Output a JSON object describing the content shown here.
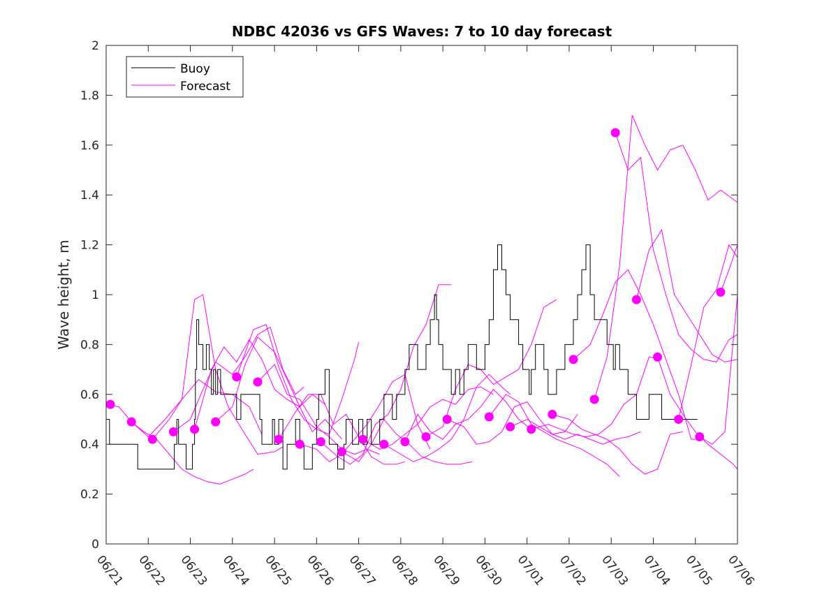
{
  "chart_data": {
    "type": "line",
    "title": "NDBC 42036 vs GFS Waves: 7 to 10 day forecast",
    "xlabel": "",
    "ylabel": "Wave height, m",
    "xlim": [
      "06/21",
      "07/06"
    ],
    "ylim": [
      0,
      2
    ],
    "x_ticks": [
      "06/21",
      "06/22",
      "06/23",
      "06/24",
      "06/25",
      "06/26",
      "06/27",
      "06/28",
      "06/29",
      "06/30",
      "07/01",
      "07/02",
      "07/03",
      "07/04",
      "07/05",
      "07/06"
    ],
    "y_ticks": [
      "0",
      "0.2",
      "0.4",
      "0.6",
      "0.8",
      "1",
      "1.2",
      "1.4",
      "1.6",
      "1.8",
      "2"
    ],
    "grid": false,
    "legend": {
      "position": "top-left",
      "entries": [
        "Buoy",
        "Forecast"
      ]
    },
    "colors": {
      "buoy": "#000000",
      "forecast": "#ff00ff"
    },
    "series": [
      {
        "name": "Buoy",
        "style": "step",
        "x": [
          0,
          0.08,
          0.12,
          0.7,
          0.75,
          1.55,
          1.6,
          1.62,
          1.68,
          1.72,
          1.8,
          1.9,
          2.0,
          2.05,
          2.1,
          2.12,
          2.15,
          2.2,
          2.25,
          2.3,
          2.38,
          2.45,
          2.5,
          2.55,
          2.6,
          2.65,
          2.72,
          2.8,
          2.85,
          2.9,
          3.0,
          3.1,
          3.2,
          3.3,
          3.4,
          3.5,
          3.6,
          3.65,
          3.7,
          3.8,
          3.9,
          3.95,
          4.0,
          4.05,
          4.1,
          4.2,
          4.3,
          4.4,
          4.5,
          4.6,
          4.7,
          4.8,
          4.9,
          5.0,
          5.05,
          5.1,
          5.2,
          5.3,
          5.4,
          5.5,
          5.6,
          5.65,
          5.7,
          5.75,
          5.8,
          5.85,
          5.9,
          6.0,
          6.1,
          6.2,
          6.3,
          6.4,
          6.5,
          6.6,
          6.7,
          6.8,
          6.9,
          7.0,
          7.1,
          7.2,
          7.3,
          7.4,
          7.5,
          7.6,
          7.7,
          7.8,
          7.85,
          7.9,
          8.0,
          8.1,
          8.2,
          8.3,
          8.4,
          8.5,
          8.6,
          8.7,
          8.8,
          8.9,
          9.0,
          9.1,
          9.2,
          9.3,
          9.4,
          9.5,
          9.6,
          9.7,
          9.8,
          9.9,
          10.0,
          10.05,
          10.1,
          10.2,
          10.3,
          10.4,
          10.5,
          10.6,
          10.7,
          10.8,
          10.9,
          11.0,
          11.1,
          11.2,
          11.3,
          11.4,
          11.5,
          11.6,
          11.7,
          11.8,
          11.9,
          12.0,
          12.05,
          12.1,
          12.2,
          12.3,
          12.4,
          12.5,
          12.6,
          12.7,
          12.8,
          12.9,
          13.0,
          13.1,
          13.2,
          13.3,
          13.4,
          13.5,
          13.6,
          13.7,
          13.8,
          13.9,
          14.0,
          14.05
        ],
        "y": [
          0.5,
          0.4,
          0.4,
          0.4,
          0.3,
          0.3,
          0.3,
          0.4,
          0.5,
          0.4,
          0.4,
          0.3,
          0.3,
          0.4,
          0.5,
          0.7,
          0.9,
          0.8,
          0.8,
          0.7,
          0.8,
          0.7,
          0.6,
          0.7,
          0.6,
          0.7,
          0.6,
          0.6,
          0.6,
          0.6,
          0.6,
          0.5,
          0.6,
          0.6,
          0.6,
          0.6,
          0.6,
          0.5,
          0.4,
          0.4,
          0.4,
          0.5,
          0.4,
          0.4,
          0.5,
          0.3,
          0.4,
          0.4,
          0.5,
          0.4,
          0.3,
          0.3,
          0.4,
          0.5,
          0.6,
          0.6,
          0.7,
          0.4,
          0.4,
          0.3,
          0.3,
          0.4,
          0.5,
          0.5,
          0.5,
          0.4,
          0.4,
          0.5,
          0.4,
          0.5,
          0.4,
          0.4,
          0.5,
          0.6,
          0.6,
          0.5,
          0.6,
          0.6,
          0.7,
          0.8,
          0.8,
          0.7,
          0.7,
          0.8,
          0.9,
          1.0,
          0.9,
          0.8,
          0.7,
          0.7,
          0.6,
          0.7,
          0.6,
          0.7,
          0.8,
          0.8,
          0.7,
          0.7,
          0.8,
          0.9,
          1.1,
          1.2,
          1.1,
          1.0,
          0.9,
          0.9,
          0.8,
          0.7,
          0.7,
          0.6,
          0.7,
          0.8,
          0.8,
          0.7,
          0.6,
          0.6,
          0.7,
          0.7,
          0.8,
          0.8,
          0.9,
          1.0,
          1.1,
          1.2,
          1.0,
          0.9,
          0.9,
          0.9,
          0.8,
          0.8,
          0.7,
          0.8,
          0.7,
          0.7,
          0.6,
          0.6,
          0.5,
          0.5,
          0.5,
          0.6,
          0.6,
          0.6,
          0.5,
          0.5,
          0.5,
          0.5,
          0.5,
          0.5,
          0.5,
          0.5,
          0.5,
          0.5
        ],
        "x_note": "days since 06/21"
      }
    ],
    "forecast_runs": [
      {
        "x": [
          0,
          0.3,
          0.6,
          0.9,
          1.2,
          1.5,
          1.8,
          2.1,
          2.4,
          2.7,
          3.0,
          3.3,
          3.5
        ],
        "y": [
          0.56,
          0.55,
          0.49,
          0.45,
          0.42,
          0.36,
          0.3,
          0.27,
          0.25,
          0.24,
          0.26,
          0.28,
          0.3
        ]
      },
      {
        "x": [
          0.6,
          1.0,
          1.4,
          1.8,
          2.2,
          2.6,
          3.0,
          3.4,
          3.7
        ],
        "y": [
          0.49,
          0.43,
          0.5,
          0.58,
          0.66,
          0.61,
          0.6,
          0.55,
          0.44
        ]
      },
      {
        "x": [
          1.1,
          1.5,
          1.8,
          2.1,
          2.3,
          2.6,
          2.9,
          3.3,
          3.6,
          4.0,
          4.2
        ],
        "y": [
          0.42,
          0.5,
          0.58,
          0.98,
          1.0,
          0.7,
          0.55,
          0.44,
          0.36,
          0.37,
          0.39
        ]
      },
      {
        "x": [
          1.6,
          2.0,
          2.3,
          2.6,
          3.0,
          3.3,
          3.6,
          3.9,
          4.2,
          4.5,
          4.7
        ],
        "y": [
          0.45,
          0.5,
          0.62,
          0.73,
          0.68,
          0.75,
          0.84,
          0.87,
          0.7,
          0.6,
          0.63
        ]
      },
      {
        "x": [
          2.1,
          2.5,
          2.8,
          3.1,
          3.4,
          3.7,
          4.0,
          4.3,
          4.6,
          4.9,
          5.2
        ],
        "y": [
          0.46,
          0.7,
          0.79,
          0.73,
          0.82,
          0.74,
          0.62,
          0.58,
          0.55,
          0.6,
          0.56
        ]
      },
      {
        "x": [
          2.6,
          3.0,
          3.3,
          3.6,
          4.0,
          4.3,
          4.6,
          4.9,
          5.2,
          5.6
        ],
        "y": [
          0.49,
          0.55,
          0.72,
          0.83,
          0.77,
          0.66,
          0.55,
          0.45,
          0.5,
          0.42
        ]
      },
      {
        "x": [
          3.1,
          3.5,
          3.8,
          4.1,
          4.4,
          4.7,
          5.0,
          5.3,
          5.6,
          5.9,
          6.0
        ],
        "y": [
          0.67,
          0.86,
          0.88,
          0.71,
          0.58,
          0.5,
          0.46,
          0.44,
          0.58,
          0.74,
          0.81
        ]
      },
      {
        "x": [
          3.6,
          4.0,
          4.3,
          4.6,
          5.0,
          5.3,
          5.6,
          5.9,
          6.2,
          6.5
        ],
        "y": [
          0.65,
          0.72,
          0.6,
          0.58,
          0.47,
          0.43,
          0.38,
          0.36,
          0.38,
          0.36
        ]
      },
      {
        "x": [
          4.1,
          4.5,
          4.8,
          5.1,
          5.4,
          5.7,
          6.0,
          6.3,
          6.6,
          6.9,
          7.1
        ],
        "y": [
          0.42,
          0.53,
          0.6,
          0.6,
          0.48,
          0.52,
          0.43,
          0.35,
          0.32,
          0.32,
          0.33
        ]
      },
      {
        "x": [
          4.6,
          5.0,
          5.3,
          5.6,
          5.9,
          6.2,
          6.5,
          6.8,
          7.1,
          7.4,
          7.7
        ],
        "y": [
          0.4,
          0.38,
          0.33,
          0.36,
          0.42,
          0.48,
          0.56,
          0.65,
          0.68,
          0.48,
          0.38
        ]
      },
      {
        "x": [
          5.1,
          5.5,
          5.8,
          6.1,
          6.4,
          6.7,
          7.0,
          7.3,
          7.6,
          7.9,
          8.2
        ],
        "y": [
          0.41,
          0.35,
          0.32,
          0.36,
          0.48,
          0.52,
          0.62,
          0.79,
          0.88,
          1.04,
          1.04
        ]
      },
      {
        "x": [
          5.6,
          6.0,
          6.3,
          6.6,
          6.9,
          7.2,
          7.5,
          7.8,
          8.1,
          8.4,
          8.7
        ],
        "y": [
          0.37,
          0.33,
          0.4,
          0.5,
          0.44,
          0.4,
          0.35,
          0.33,
          0.32,
          0.32,
          0.33
        ]
      },
      {
        "x": [
          6.1,
          6.5,
          6.8,
          7.1,
          7.4,
          7.7,
          8.0,
          8.3,
          8.6,
          8.9,
          9.2
        ],
        "y": [
          0.42,
          0.38,
          0.4,
          0.44,
          0.48,
          0.55,
          0.58,
          0.56,
          0.62,
          0.63,
          0.6
        ]
      },
      {
        "x": [
          6.6,
          7.0,
          7.3,
          7.6,
          7.9,
          8.2,
          8.5,
          8.8,
          9.1,
          9.4,
          9.6
        ],
        "y": [
          0.4,
          0.36,
          0.33,
          0.35,
          0.38,
          0.42,
          0.5,
          0.63,
          0.68,
          0.63,
          0.6
        ]
      },
      {
        "x": [
          7.1,
          7.4,
          7.7,
          8.0,
          8.3,
          8.6,
          8.9,
          9.2,
          9.5,
          9.8,
          10.1
        ],
        "y": [
          0.41,
          0.52,
          0.45,
          0.42,
          0.48,
          0.5,
          0.55,
          0.62,
          0.57,
          0.5,
          0.46
        ]
      },
      {
        "x": [
          7.6,
          8.0,
          8.3,
          8.6,
          8.9,
          9.2,
          9.5,
          9.8,
          10.1,
          10.4,
          10.7
        ],
        "y": [
          0.43,
          0.47,
          0.62,
          0.72,
          0.7,
          0.64,
          0.67,
          0.7,
          0.8,
          0.95,
          0.98
        ]
      },
      {
        "x": [
          8.1,
          8.5,
          8.8,
          9.1,
          9.4,
          9.7,
          10.0,
          10.3,
          10.6,
          10.9,
          11.2
        ],
        "y": [
          0.5,
          0.47,
          0.4,
          0.41,
          0.45,
          0.55,
          0.57,
          0.5,
          0.44,
          0.45,
          0.52
        ]
      },
      {
        "x": [
          9.1,
          9.5,
          9.8,
          10.1,
          10.4,
          10.7,
          11.0,
          11.3,
          11.6,
          11.9,
          12.2
        ],
        "y": [
          0.51,
          0.6,
          0.57,
          0.48,
          0.45,
          0.42,
          0.4,
          0.38,
          0.35,
          0.32,
          0.27
        ]
      },
      {
        "x": [
          9.6,
          10.0,
          10.3,
          10.6,
          10.9,
          11.2,
          11.5,
          11.8,
          12.1,
          12.4,
          12.7
        ],
        "y": [
          0.47,
          0.5,
          0.47,
          0.44,
          0.42,
          0.44,
          0.42,
          0.4,
          0.42,
          0.43,
          0.45
        ]
      },
      {
        "x": [
          10.1,
          10.5,
          10.8,
          11.1,
          11.4,
          11.7,
          12.0,
          12.3,
          12.6,
          12.9,
          13.2
        ],
        "y": [
          0.46,
          0.48,
          0.46,
          0.44,
          0.43,
          0.44,
          0.48,
          0.56,
          0.6,
          0.75,
          0.74
        ]
      },
      {
        "x": [
          10.6,
          11.0,
          11.3,
          11.6,
          11.9,
          12.2,
          12.5,
          12.8,
          13.1,
          13.4,
          13.7
        ],
        "y": [
          0.52,
          0.5,
          0.46,
          0.44,
          0.42,
          0.38,
          0.32,
          0.28,
          0.3,
          0.44,
          0.45
        ]
      },
      {
        "x": [
          11.1,
          11.5,
          11.8,
          12.1,
          12.4,
          12.7,
          13.0,
          13.3,
          13.6,
          13.9,
          14.1
        ],
        "y": [
          0.74,
          0.8,
          0.92,
          1.05,
          1.1,
          1.0,
          0.88,
          0.74,
          0.6,
          0.42,
          0.42
        ]
      },
      {
        "x": [
          11.6,
          11.9,
          12.2,
          12.5,
          12.8,
          13.1,
          13.4,
          13.7,
          14.0,
          14.3,
          14.6,
          15.0
        ],
        "y": [
          0.58,
          0.75,
          1.12,
          1.72,
          1.6,
          1.5,
          1.58,
          1.6,
          1.5,
          1.38,
          1.42,
          1.37
        ]
      },
      {
        "x": [
          12.1,
          12.4,
          12.7,
          13.0,
          13.3,
          13.6,
          13.9,
          14.2,
          14.5,
          14.8,
          15.0
        ],
        "y": [
          1.65,
          1.5,
          1.55,
          1.18,
          1.0,
          0.84,
          0.78,
          0.74,
          0.73,
          0.82,
          0.84
        ]
      },
      {
        "x": [
          12.6,
          12.9,
          13.2,
          13.5,
          13.8,
          14.1,
          14.4,
          14.7,
          15.0
        ],
        "y": [
          0.98,
          1.18,
          1.26,
          1.0,
          0.92,
          0.84,
          0.76,
          0.73,
          0.74
        ]
      },
      {
        "x": [
          13.1,
          13.4,
          13.7,
          14.0,
          14.3,
          14.6,
          14.9,
          15.0
        ],
        "y": [
          0.75,
          0.6,
          0.52,
          0.45,
          0.4,
          0.36,
          0.32,
          0.3
        ]
      },
      {
        "x": [
          13.6,
          13.9,
          14.2,
          14.5,
          14.8,
          15.0
        ],
        "y": [
          0.5,
          0.72,
          0.95,
          1.02,
          1.2,
          1.15
        ]
      },
      {
        "x": [
          14.1,
          14.4,
          14.7,
          15.0
        ],
        "y": [
          0.43,
          0.4,
          0.45,
          1.0
        ]
      },
      {
        "x": [
          14.6,
          14.8,
          15.0
        ],
        "y": [
          1.01,
          1.1,
          1.2
        ]
      }
    ],
    "forecast_markers": {
      "x": [
        0.1,
        0.6,
        1.1,
        1.6,
        2.1,
        2.6,
        3.1,
        3.6,
        4.1,
        4.6,
        5.1,
        5.6,
        6.1,
        6.6,
        7.1,
        7.6,
        8.1,
        9.1,
        9.6,
        10.1,
        10.6,
        11.1,
        11.6,
        12.1,
        12.6,
        13.1,
        13.6,
        14.1,
        14.6
      ],
      "y": [
        0.56,
        0.49,
        0.42,
        0.45,
        0.46,
        0.49,
        0.67,
        0.65,
        0.42,
        0.4,
        0.41,
        0.37,
        0.42,
        0.4,
        0.41,
        0.43,
        0.5,
        0.51,
        0.47,
        0.46,
        0.52,
        0.74,
        0.58,
        1.65,
        0.98,
        0.75,
        0.5,
        0.43,
        1.01
      ]
    }
  }
}
